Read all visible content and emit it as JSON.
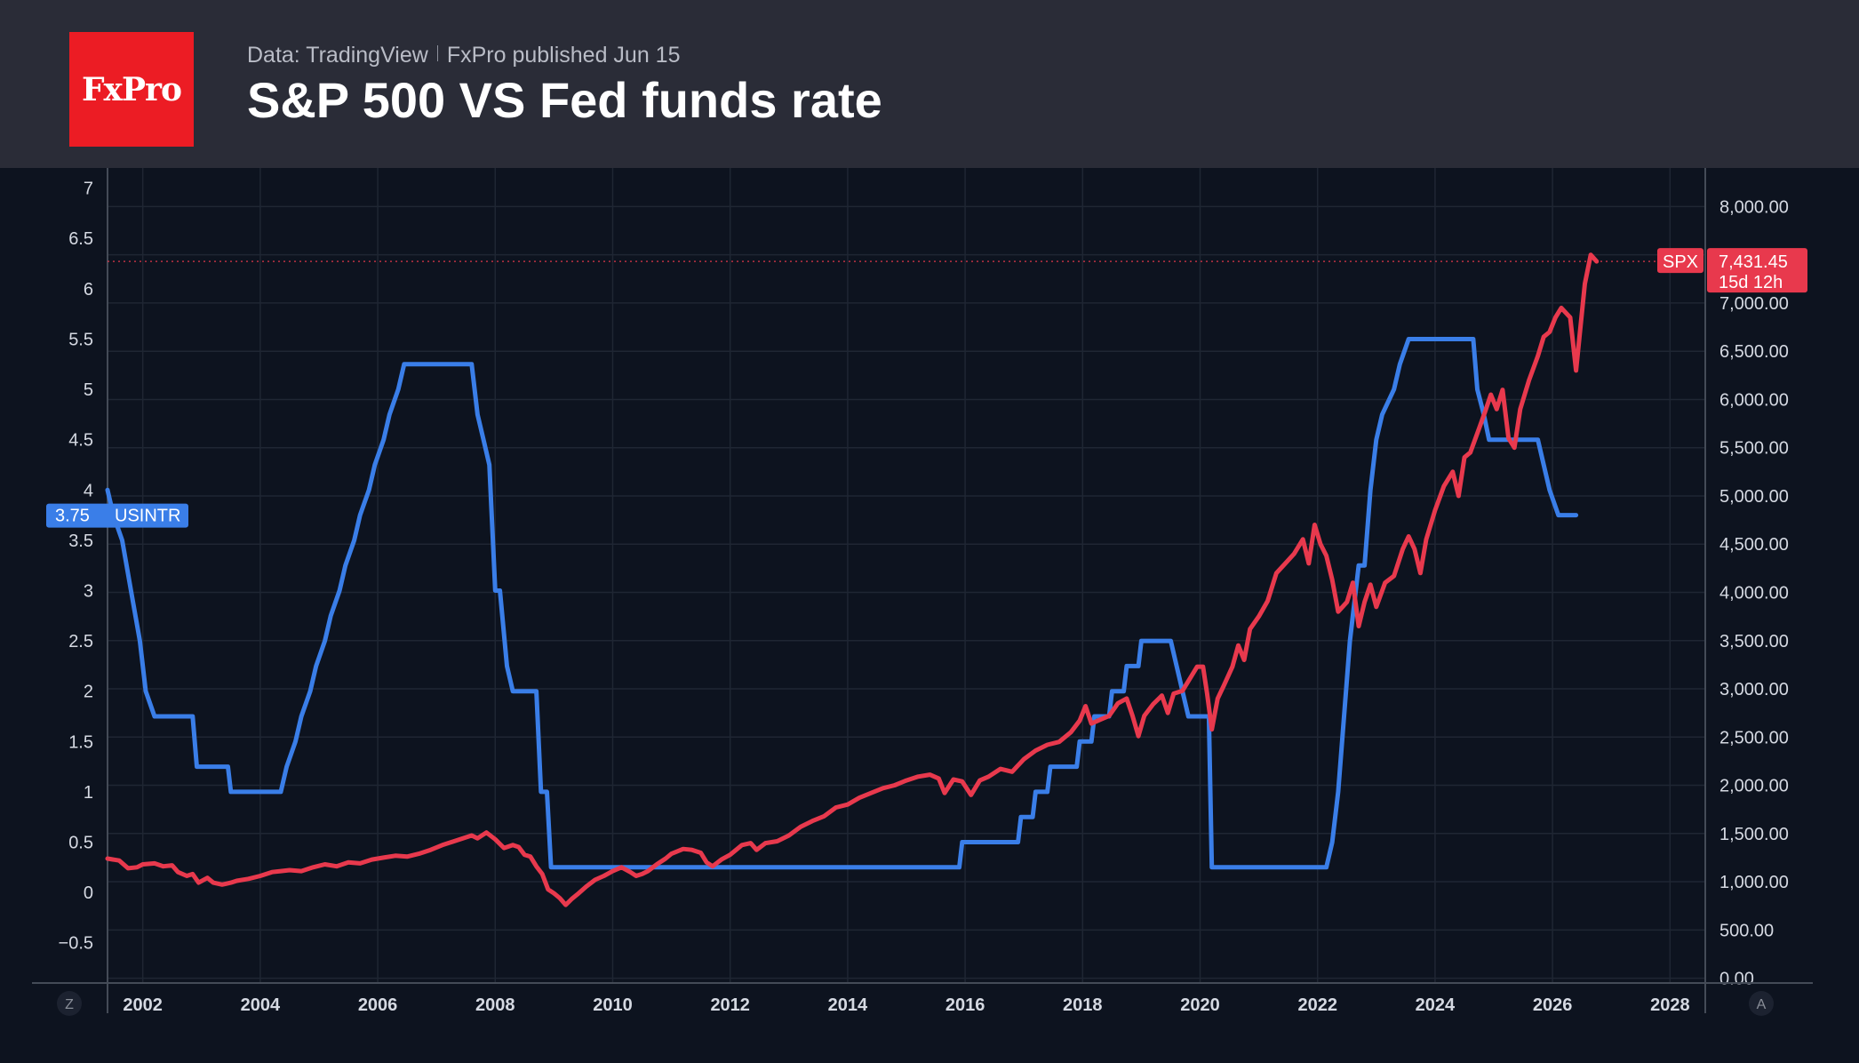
{
  "header": {
    "logo_text": "FxPro",
    "source": "Data: TradingView",
    "published": "FxPro published Jun 15",
    "title": "S&P 500 VS Fed funds rate"
  },
  "colors": {
    "background": "#0d131f",
    "header_bg": "#2a2c37",
    "logo_red": "#ec1c24",
    "usintr_blue": "#3a7ee8",
    "spx_red": "#e8394d"
  },
  "corner_labels": {
    "left": "Z",
    "right": "A"
  },
  "chart_data": {
    "type": "line",
    "x_axis": {
      "range": [
        2001.4,
        2028.6
      ],
      "ticks": [
        "2002",
        "2004",
        "2006",
        "2008",
        "2010",
        "2012",
        "2014",
        "2016",
        "2018",
        "2020",
        "2022",
        "2024",
        "2026",
        "2028"
      ]
    },
    "y_left": {
      "range": [
        -0.9,
        7.2
      ],
      "ticks": [
        "−0.5",
        "0",
        "0.5",
        "1",
        "1.5",
        "2",
        "2.5",
        "3",
        "3.5",
        "4",
        "4.5",
        "5",
        "5.5",
        "6",
        "6.5",
        "7"
      ]
    },
    "y_right": {
      "range": [
        -50,
        8400
      ],
      "ticks": [
        "0.00",
        "500.00",
        "1,000.00",
        "1,500.00",
        "2,000.00",
        "2,500.00",
        "3,000.00",
        "3,500.00",
        "4,000.00",
        "4,500.00",
        "5,000.00",
        "5,500.00",
        "6,000.00",
        "6,500.00",
        "7,000.00",
        "7,500.00",
        "8,000.00"
      ]
    },
    "grid": true,
    "series": [
      {
        "name": "USINTR",
        "axis": "left",
        "color": "#3a7ee8",
        "last_value_label": "3.75",
        "points": [
          [
            2001.4,
            4.0
          ],
          [
            2001.5,
            3.75
          ],
          [
            2001.65,
            3.5
          ],
          [
            2001.8,
            3.0
          ],
          [
            2001.95,
            2.5
          ],
          [
            2002.05,
            2.0
          ],
          [
            2002.2,
            1.75
          ],
          [
            2002.85,
            1.75
          ],
          [
            2002.92,
            1.25
          ],
          [
            2003.45,
            1.25
          ],
          [
            2003.5,
            1.0
          ],
          [
            2004.35,
            1.0
          ],
          [
            2004.45,
            1.25
          ],
          [
            2004.6,
            1.5
          ],
          [
            2004.7,
            1.75
          ],
          [
            2004.85,
            2.0
          ],
          [
            2004.95,
            2.25
          ],
          [
            2005.1,
            2.5
          ],
          [
            2005.2,
            2.75
          ],
          [
            2005.35,
            3.0
          ],
          [
            2005.45,
            3.25
          ],
          [
            2005.6,
            3.5
          ],
          [
            2005.7,
            3.75
          ],
          [
            2005.85,
            4.0
          ],
          [
            2005.95,
            4.25
          ],
          [
            2006.1,
            4.5
          ],
          [
            2006.2,
            4.75
          ],
          [
            2006.35,
            5.0
          ],
          [
            2006.45,
            5.25
          ],
          [
            2007.6,
            5.25
          ],
          [
            2007.7,
            4.75
          ],
          [
            2007.8,
            4.5
          ],
          [
            2007.9,
            4.25
          ],
          [
            2008.0,
            3.0
          ],
          [
            2008.08,
            3.0
          ],
          [
            2008.2,
            2.25
          ],
          [
            2008.3,
            2.0
          ],
          [
            2008.7,
            2.0
          ],
          [
            2008.78,
            1.0
          ],
          [
            2008.88,
            1.0
          ],
          [
            2008.95,
            0.25
          ],
          [
            2015.9,
            0.25
          ],
          [
            2015.95,
            0.5
          ],
          [
            2016.9,
            0.5
          ],
          [
            2016.95,
            0.75
          ],
          [
            2017.15,
            0.75
          ],
          [
            2017.2,
            1.0
          ],
          [
            2017.4,
            1.0
          ],
          [
            2017.45,
            1.25
          ],
          [
            2017.9,
            1.25
          ],
          [
            2017.95,
            1.5
          ],
          [
            2018.15,
            1.5
          ],
          [
            2018.2,
            1.75
          ],
          [
            2018.45,
            1.75
          ],
          [
            2018.5,
            2.0
          ],
          [
            2018.7,
            2.0
          ],
          [
            2018.75,
            2.25
          ],
          [
            2018.95,
            2.25
          ],
          [
            2019.0,
            2.5
          ],
          [
            2019.5,
            2.5
          ],
          [
            2019.6,
            2.25
          ],
          [
            2019.7,
            2.0
          ],
          [
            2019.8,
            1.75
          ],
          [
            2020.15,
            1.75
          ],
          [
            2020.2,
            0.25
          ],
          [
            2022.15,
            0.25
          ],
          [
            2022.25,
            0.5
          ],
          [
            2022.35,
            1.0
          ],
          [
            2022.45,
            1.75
          ],
          [
            2022.55,
            2.5
          ],
          [
            2022.7,
            3.25
          ],
          [
            2022.8,
            3.25
          ],
          [
            2022.9,
            4.0
          ],
          [
            2023.0,
            4.5
          ],
          [
            2023.1,
            4.75
          ],
          [
            2023.3,
            5.0
          ],
          [
            2023.4,
            5.25
          ],
          [
            2023.55,
            5.5
          ],
          [
            2024.65,
            5.5
          ],
          [
            2024.72,
            5.0
          ],
          [
            2024.83,
            4.75
          ],
          [
            2024.92,
            4.5
          ],
          [
            2025.75,
            4.5
          ],
          [
            2025.85,
            4.25
          ],
          [
            2025.95,
            4.0
          ],
          [
            2026.1,
            3.75
          ],
          [
            2026.4,
            3.75
          ]
        ]
      },
      {
        "name": "SPX",
        "axis": "right",
        "color": "#e8394d",
        "last_value_label": "7,431.45",
        "countdown_label": "15d 12h",
        "points": [
          [
            2001.4,
            1240
          ],
          [
            2001.6,
            1220
          ],
          [
            2001.75,
            1140
          ],
          [
            2001.9,
            1150
          ],
          [
            2002.0,
            1180
          ],
          [
            2002.2,
            1190
          ],
          [
            2002.35,
            1160
          ],
          [
            2002.5,
            1170
          ],
          [
            2002.6,
            1100
          ],
          [
            2002.75,
            1060
          ],
          [
            2002.85,
            1080
          ],
          [
            2002.95,
            990
          ],
          [
            2003.1,
            1040
          ],
          [
            2003.2,
            990
          ],
          [
            2003.35,
            970
          ],
          [
            2003.5,
            990
          ],
          [
            2003.6,
            1010
          ],
          [
            2003.8,
            1030
          ],
          [
            2004.0,
            1060
          ],
          [
            2004.2,
            1100
          ],
          [
            2004.35,
            1110
          ],
          [
            2004.5,
            1120
          ],
          [
            2004.7,
            1110
          ],
          [
            2004.9,
            1150
          ],
          [
            2005.1,
            1180
          ],
          [
            2005.3,
            1160
          ],
          [
            2005.5,
            1200
          ],
          [
            2005.7,
            1190
          ],
          [
            2005.9,
            1230
          ],
          [
            2006.1,
            1250
          ],
          [
            2006.3,
            1270
          ],
          [
            2006.5,
            1260
          ],
          [
            2006.7,
            1290
          ],
          [
            2006.9,
            1330
          ],
          [
            2007.1,
            1380
          ],
          [
            2007.3,
            1420
          ],
          [
            2007.45,
            1450
          ],
          [
            2007.6,
            1480
          ],
          [
            2007.7,
            1450
          ],
          [
            2007.85,
            1510
          ],
          [
            2008.0,
            1440
          ],
          [
            2008.15,
            1350
          ],
          [
            2008.3,
            1380
          ],
          [
            2008.4,
            1360
          ],
          [
            2008.5,
            1280
          ],
          [
            2008.6,
            1260
          ],
          [
            2008.7,
            1160
          ],
          [
            2008.8,
            1080
          ],
          [
            2008.9,
            920
          ],
          [
            2009.0,
            880
          ],
          [
            2009.1,
            830
          ],
          [
            2009.2,
            760
          ],
          [
            2009.3,
            820
          ],
          [
            2009.4,
            870
          ],
          [
            2009.55,
            950
          ],
          [
            2009.7,
            1020
          ],
          [
            2009.85,
            1060
          ],
          [
            2010.0,
            1110
          ],
          [
            2010.15,
            1150
          ],
          [
            2010.3,
            1100
          ],
          [
            2010.4,
            1060
          ],
          [
            2010.5,
            1080
          ],
          [
            2010.6,
            1110
          ],
          [
            2010.75,
            1180
          ],
          [
            2010.9,
            1240
          ],
          [
            2011.0,
            1290
          ],
          [
            2011.2,
            1340
          ],
          [
            2011.35,
            1330
          ],
          [
            2011.5,
            1300
          ],
          [
            2011.6,
            1200
          ],
          [
            2011.7,
            1160
          ],
          [
            2011.85,
            1230
          ],
          [
            2012.0,
            1280
          ],
          [
            2012.2,
            1380
          ],
          [
            2012.35,
            1400
          ],
          [
            2012.45,
            1330
          ],
          [
            2012.6,
            1400
          ],
          [
            2012.8,
            1420
          ],
          [
            2013.0,
            1480
          ],
          [
            2013.2,
            1570
          ],
          [
            2013.4,
            1630
          ],
          [
            2013.6,
            1680
          ],
          [
            2013.8,
            1770
          ],
          [
            2014.0,
            1800
          ],
          [
            2014.2,
            1870
          ],
          [
            2014.4,
            1920
          ],
          [
            2014.6,
            1970
          ],
          [
            2014.8,
            2000
          ],
          [
            2015.0,
            2050
          ],
          [
            2015.2,
            2090
          ],
          [
            2015.4,
            2110
          ],
          [
            2015.55,
            2070
          ],
          [
            2015.65,
            1920
          ],
          [
            2015.8,
            2060
          ],
          [
            2015.95,
            2040
          ],
          [
            2016.1,
            1900
          ],
          [
            2016.25,
            2050
          ],
          [
            2016.4,
            2090
          ],
          [
            2016.6,
            2170
          ],
          [
            2016.8,
            2140
          ],
          [
            2017.0,
            2270
          ],
          [
            2017.2,
            2360
          ],
          [
            2017.4,
            2420
          ],
          [
            2017.6,
            2450
          ],
          [
            2017.8,
            2550
          ],
          [
            2017.95,
            2670
          ],
          [
            2018.05,
            2820
          ],
          [
            2018.15,
            2640
          ],
          [
            2018.3,
            2680
          ],
          [
            2018.45,
            2720
          ],
          [
            2018.6,
            2850
          ],
          [
            2018.75,
            2900
          ],
          [
            2018.85,
            2720
          ],
          [
            2018.95,
            2510
          ],
          [
            2019.05,
            2720
          ],
          [
            2019.2,
            2840
          ],
          [
            2019.35,
            2930
          ],
          [
            2019.45,
            2750
          ],
          [
            2019.55,
            2950
          ],
          [
            2019.7,
            2980
          ],
          [
            2019.85,
            3130
          ],
          [
            2019.95,
            3230
          ],
          [
            2020.05,
            3230
          ],
          [
            2020.12,
            2950
          ],
          [
            2020.2,
            2580
          ],
          [
            2020.3,
            2900
          ],
          [
            2020.4,
            3030
          ],
          [
            2020.55,
            3230
          ],
          [
            2020.65,
            3450
          ],
          [
            2020.75,
            3300
          ],
          [
            2020.85,
            3620
          ],
          [
            2021.0,
            3750
          ],
          [
            2021.15,
            3910
          ],
          [
            2021.3,
            4200
          ],
          [
            2021.45,
            4300
          ],
          [
            2021.6,
            4400
          ],
          [
            2021.75,
            4550
          ],
          [
            2021.85,
            4300
          ],
          [
            2021.95,
            4700
          ],
          [
            2022.05,
            4500
          ],
          [
            2022.15,
            4380
          ],
          [
            2022.25,
            4130
          ],
          [
            2022.35,
            3800
          ],
          [
            2022.5,
            3900
          ],
          [
            2022.6,
            4100
          ],
          [
            2022.7,
            3650
          ],
          [
            2022.8,
            3900
          ],
          [
            2022.9,
            4080
          ],
          [
            2023.0,
            3850
          ],
          [
            2023.15,
            4100
          ],
          [
            2023.3,
            4170
          ],
          [
            2023.45,
            4450
          ],
          [
            2023.55,
            4580
          ],
          [
            2023.65,
            4450
          ],
          [
            2023.75,
            4200
          ],
          [
            2023.85,
            4550
          ],
          [
            2024.0,
            4850
          ],
          [
            2024.15,
            5100
          ],
          [
            2024.3,
            5250
          ],
          [
            2024.4,
            5000
          ],
          [
            2024.5,
            5400
          ],
          [
            2024.6,
            5450
          ],
          [
            2024.75,
            5700
          ],
          [
            2024.85,
            5870
          ],
          [
            2024.95,
            6050
          ],
          [
            2025.05,
            5900
          ],
          [
            2025.15,
            6100
          ],
          [
            2025.25,
            5600
          ],
          [
            2025.35,
            5500
          ],
          [
            2025.45,
            5900
          ],
          [
            2025.6,
            6200
          ],
          [
            2025.75,
            6450
          ],
          [
            2025.85,
            6650
          ],
          [
            2025.95,
            6700
          ],
          [
            2026.05,
            6850
          ],
          [
            2026.15,
            6950
          ],
          [
            2026.3,
            6850
          ],
          [
            2026.4,
            6300
          ],
          [
            2026.55,
            7200
          ],
          [
            2026.65,
            7500
          ],
          [
            2026.75,
            7431.45
          ]
        ]
      }
    ]
  }
}
